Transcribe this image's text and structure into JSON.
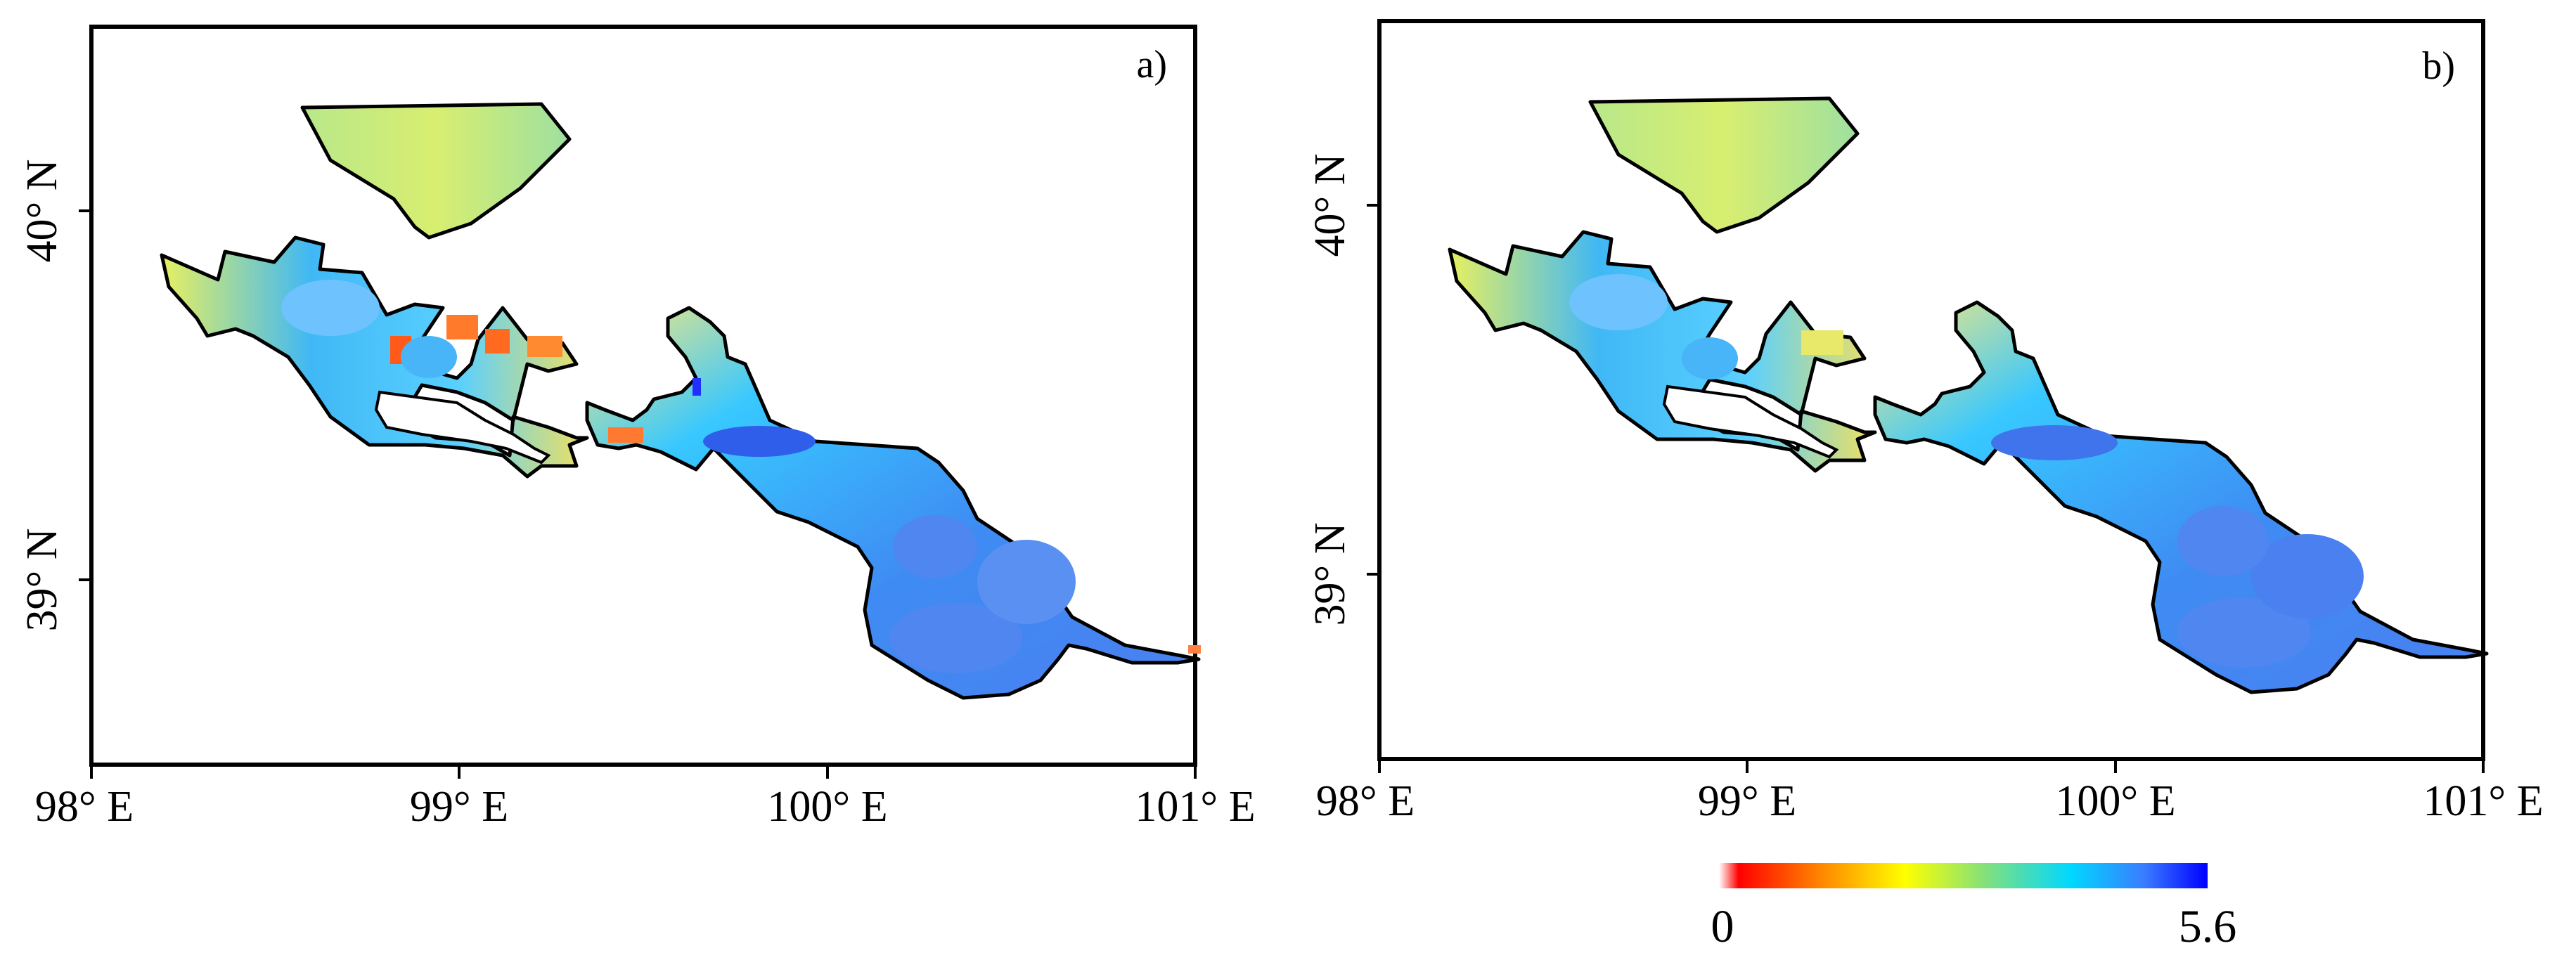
{
  "panels": [
    {
      "label": "a)",
      "x_ticks": [
        "98° E",
        "99° E",
        "100° E",
        "101° E"
      ],
      "y_ticks": [
        "40° N",
        "39° N"
      ]
    },
    {
      "label": "b)",
      "x_ticks": [
        "98° E",
        "99° E",
        "100° E",
        "101° E"
      ],
      "y_ticks": [
        "40° N",
        "39° N"
      ]
    }
  ],
  "colorbar": {
    "min_label": "0",
    "max_label": "5.6",
    "min": 0,
    "max": 5.6,
    "colors": [
      "#ff0000",
      "#ff8000",
      "#ffff00",
      "#7fe07f",
      "#00d0ff",
      "#3a7dff",
      "#0000ff"
    ]
  },
  "colors": {
    "outline": "#000000",
    "background": "#ffffff"
  }
}
